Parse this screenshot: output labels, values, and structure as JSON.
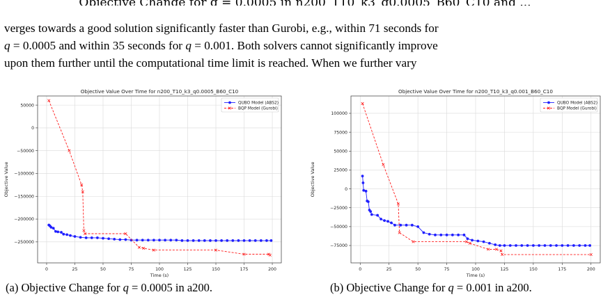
{
  "top_fragment": "Objective Change for q = 0.0005 in n200_T10_k3_q0.0005_B60_C10 and ...",
  "paragraph": {
    "line1": "verges towards a good solution significantly faster than Gurobi, e.g., within 71 seconds for",
    "line2_q1": "q",
    "line2_a": " = 0.0005 and within 35 seconds for ",
    "line2_q2": "q",
    "line2_b": " = 0.001. Both solvers cannot significantly improve",
    "line3": "upon them further until the computational time limit is reached. When we further vary"
  },
  "captions": {
    "a_prefix": "(a) Objective Change for ",
    "a_var": "q",
    "a_suffix": " = 0.0005 in a200.",
    "b_prefix": "(b) Objective Change for ",
    "b_var": "q",
    "b_suffix": " = 0.001 in a200."
  },
  "colors": {
    "qubo": "#1f1fff",
    "bqp": "#ff1a1a",
    "grid": "#d9d9d9"
  },
  "chart_data": [
    {
      "type": "line",
      "title": "Objective Value Over Time for n200_T10_k3_q0.0005_B60_C10",
      "xlabel": "Time (s)",
      "ylabel": "Objective Value",
      "xlim": [
        -8,
        208
      ],
      "ylim": [
        -296000,
        70000
      ],
      "xticks": [
        0,
        25,
        50,
        75,
        100,
        125,
        150,
        175,
        200
      ],
      "yticks": [
        50000,
        0,
        -50000,
        -100000,
        -150000,
        -200000,
        -250000
      ],
      "ytick_labels": [
        "50000",
        "0",
        "−50000",
        "−100000",
        "−150000",
        "−200000",
        "−250000"
      ],
      "grid": true,
      "legend": "top-right",
      "series": [
        {
          "name": "QUBO Model (ABS2)",
          "style": "solid-dot",
          "points": [
            [
              2,
              -213000
            ],
            [
              3,
              -215000
            ],
            [
              4,
              -218000
            ],
            [
              6,
              -220000
            ],
            [
              8,
              -227000
            ],
            [
              10,
              -228000
            ],
            [
              13,
              -229000
            ],
            [
              15,
              -233000
            ],
            [
              18,
              -234000
            ],
            [
              21,
              -236000
            ],
            [
              25,
              -238000
            ],
            [
              30,
              -240000
            ],
            [
              35,
              -241000
            ],
            [
              40,
              -241000
            ],
            [
              45,
              -241000
            ],
            [
              50,
              -242000
            ],
            [
              55,
              -243000
            ],
            [
              60,
              -244000
            ],
            [
              65,
              -245000
            ],
            [
              70,
              -245000
            ],
            [
              75,
              -246000
            ],
            [
              80,
              -246000
            ],
            [
              85,
              -246000
            ],
            [
              90,
              -246000
            ],
            [
              95,
              -246000
            ],
            [
              100,
              -246000
            ],
            [
              105,
              -246000
            ],
            [
              110,
              -246000
            ],
            [
              115,
              -246000
            ],
            [
              120,
              -247000
            ],
            [
              125,
              -247000
            ],
            [
              130,
              -247000
            ],
            [
              135,
              -247000
            ],
            [
              140,
              -247000
            ],
            [
              145,
              -247000
            ],
            [
              150,
              -247000
            ],
            [
              155,
              -247000
            ],
            [
              160,
              -247000
            ],
            [
              165,
              -247000
            ],
            [
              170,
              -247000
            ],
            [
              175,
              -247000
            ],
            [
              180,
              -247000
            ],
            [
              185,
              -247000
            ],
            [
              190,
              -247000
            ],
            [
              195,
              -247000
            ],
            [
              199,
              -247000
            ]
          ]
        },
        {
          "name": "BQP Model (Gurobi)",
          "style": "dashed-x",
          "points": [
            [
              2,
              60000
            ],
            [
              20,
              -50000
            ],
            [
              31,
              -125000
            ],
            [
              32,
              -140000
            ],
            [
              33,
              -225000
            ],
            [
              34,
              -232000
            ],
            [
              70,
              -232000
            ],
            [
              82,
              -262000
            ],
            [
              86,
              -264000
            ],
            [
              95,
              -268000
            ],
            [
              150,
              -268000
            ],
            [
              175,
              -277000
            ],
            [
              197,
              -277000
            ],
            [
              198,
              -279000
            ]
          ]
        }
      ]
    },
    {
      "type": "line",
      "title": "Objective Value Over Time for n200_T10_k3_q0.001_B60_C10",
      "xlabel": "Time (s)",
      "ylabel": "Objective Value",
      "xlim": [
        -8,
        208
      ],
      "ylim": [
        -98000,
        123000
      ],
      "xticks": [
        0,
        25,
        50,
        75,
        100,
        125,
        150,
        175,
        200
      ],
      "yticks": [
        100000,
        75000,
        50000,
        25000,
        0,
        -25000,
        -50000,
        -75000
      ],
      "ytick_labels": [
        "100000",
        "75000",
        "50000",
        "25000",
        "0",
        "−25000",
        "−50000",
        "−75000"
      ],
      "grid": true,
      "legend": "top-right",
      "series": [
        {
          "name": "QUBO Model (ABS2)",
          "style": "solid-dot",
          "points": [
            [
              2,
              17000
            ],
            [
              2.5,
              8000
            ],
            [
              3,
              -2000
            ],
            [
              5,
              -3000
            ],
            [
              6,
              -16000
            ],
            [
              7,
              -17000
            ],
            [
              8,
              -28000
            ],
            [
              9,
              -30000
            ],
            [
              10,
              -34000
            ],
            [
              15,
              -35000
            ],
            [
              18,
              -40000
            ],
            [
              21,
              -42000
            ],
            [
              24,
              -43000
            ],
            [
              27,
              -45000
            ],
            [
              30,
              -48000
            ],
            [
              35,
              -48000
            ],
            [
              40,
              -48000
            ],
            [
              45,
              -48000
            ],
            [
              50,
              -50000
            ],
            [
              55,
              -58000
            ],
            [
              60,
              -60000
            ],
            [
              65,
              -61000
            ],
            [
              70,
              -61000
            ],
            [
              75,
              -61000
            ],
            [
              80,
              -61000
            ],
            [
              85,
              -61000
            ],
            [
              90,
              -61000
            ],
            [
              93,
              -66000
            ],
            [
              97,
              -68000
            ],
            [
              102,
              -69000
            ],
            [
              107,
              -70000
            ],
            [
              112,
              -72000
            ],
            [
              117,
              -74000
            ],
            [
              121,
              -75000
            ],
            [
              125,
              -75000
            ],
            [
              130,
              -75000
            ],
            [
              135,
              -75000
            ],
            [
              140,
              -75000
            ],
            [
              145,
              -75000
            ],
            [
              150,
              -75000
            ],
            [
              155,
              -75000
            ],
            [
              160,
              -75000
            ],
            [
              165,
              -75000
            ],
            [
              170,
              -75000
            ],
            [
              175,
              -75000
            ],
            [
              180,
              -75000
            ],
            [
              185,
              -75000
            ],
            [
              190,
              -75000
            ],
            [
              195,
              -75000
            ],
            [
              199,
              -75000
            ]
          ]
        },
        {
          "name": "BQP Model (Gurobi)",
          "style": "dashed-x",
          "points": [
            [
              2,
              113000
            ],
            [
              20,
              32000
            ],
            [
              33,
              -20000
            ],
            [
              34,
              -58000
            ],
            [
              46,
              -70000
            ],
            [
              92,
              -70000
            ],
            [
              95,
              -72000
            ],
            [
              111,
              -80000
            ],
            [
              118,
              -80000
            ],
            [
              122,
              -82000
            ],
            [
              123,
              -87000
            ],
            [
              200,
              -87000
            ]
          ]
        }
      ]
    }
  ]
}
